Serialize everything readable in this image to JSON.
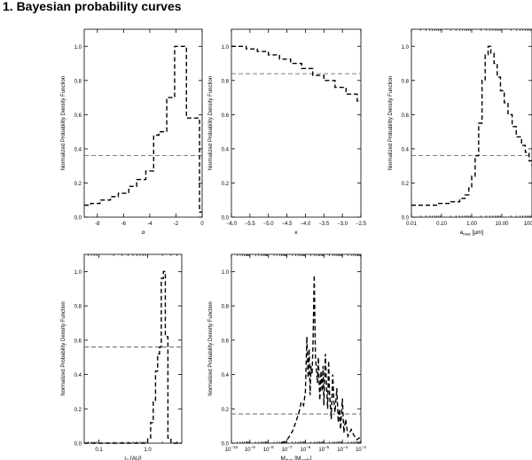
{
  "page": {
    "heading": "1. Bayesian probability curves"
  },
  "chart_data": [
    {
      "type": "line",
      "ylabel": "Normalized Probability Density Function",
      "xlabel": "α",
      "xscale": "linear",
      "xlim": [
        -9,
        0
      ],
      "ylim": [
        0,
        1.1
      ],
      "xticks": [
        -8,
        -6,
        -4,
        -2,
        0
      ],
      "xtick_labels": [
        "-8",
        "-6",
        "-4",
        "-2",
        "0"
      ],
      "yticks": [
        0,
        0.2,
        0.4,
        0.6,
        0.8,
        1.0
      ],
      "ytick_labels": [
        "0.0",
        "0.2",
        "0.4",
        "0.6",
        "0.8",
        "1.0"
      ],
      "reference_level": 0.36,
      "series": [
        {
          "style": "step-dashed",
          "x": [
            -9,
            -8.5,
            -7.8,
            -7.0,
            -6.4,
            -5.6,
            -5.0,
            -4.3,
            -3.7,
            -3.3,
            -2.7,
            -2.1,
            -1.6,
            -1.2,
            -0.5,
            -0.2,
            0
          ],
          "y": [
            0.07,
            0.08,
            0.1,
            0.12,
            0.14,
            0.18,
            0.22,
            0.27,
            0.48,
            0.5,
            0.7,
            1.0,
            1.0,
            0.58,
            0.58,
            0.03,
            0.03
          ]
        }
      ]
    },
    {
      "type": "line",
      "ylabel": "Normalized Probability Density Function",
      "xlabel": "κ",
      "xscale": "linear",
      "xlim": [
        -6.0,
        -2.5
      ],
      "ylim": [
        0,
        1.1
      ],
      "xticks": [
        -6.0,
        -5.5,
        -5.0,
        -4.5,
        -4.0,
        -3.5,
        -3.0,
        -2.5
      ],
      "xtick_labels": [
        "−6.0",
        "−5.5",
        "−5.0",
        "−4.5",
        "−4.0",
        "−3.5",
        "−3.0",
        "−2.5"
      ],
      "yticks": [
        0,
        0.2,
        0.4,
        0.6,
        0.8,
        1.0
      ],
      "ytick_labels": [
        "0.0",
        "0.2",
        "0.4",
        "0.6",
        "0.8",
        "1.0"
      ],
      "reference_level": 0.84,
      "series": [
        {
          "style": "step-dashed",
          "x": [
            -6.0,
            -5.6,
            -5.3,
            -5.0,
            -4.7,
            -4.4,
            -4.1,
            -3.8,
            -3.5,
            -3.2,
            -2.9,
            -2.6,
            -2.5
          ],
          "y": [
            1.0,
            0.985,
            0.97,
            0.95,
            0.925,
            0.9,
            0.87,
            0.83,
            0.8,
            0.76,
            0.72,
            0.68,
            0.68
          ]
        }
      ]
    },
    {
      "type": "line",
      "ylabel": "Normalized Probability Density Function",
      "xlabel": "a",
      "xlabel_sub": "max",
      "xlabel_unit": " [μm]",
      "xscale": "log",
      "xlim": [
        0.01,
        100
      ],
      "ylim": [
        0,
        1.1
      ],
      "xticks": [
        0.01,
        0.1,
        1,
        10,
        100
      ],
      "xtick_labels": [
        "0.01",
        "0.10",
        "1.00",
        "10.00",
        "100.00"
      ],
      "yticks": [
        0,
        0.2,
        0.4,
        0.6,
        0.8,
        1.0
      ],
      "ytick_labels": [
        "0.0",
        "0.2",
        "0.4",
        "0.6",
        "0.8",
        "1.0"
      ],
      "reference_level": 0.36,
      "series": [
        {
          "style": "step-dashed",
          "x": [
            0.01,
            0.03,
            0.08,
            0.2,
            0.4,
            0.6,
            0.8,
            1.0,
            1.3,
            1.7,
            2.2,
            2.8,
            3.5,
            4.3,
            5.5,
            7,
            9,
            12,
            16,
            22,
            30,
            45,
            60,
            80,
            100
          ],
          "y": [
            0.07,
            0.07,
            0.08,
            0.09,
            0.11,
            0.13,
            0.17,
            0.24,
            0.36,
            0.55,
            0.8,
            0.95,
            1.0,
            0.96,
            0.9,
            0.82,
            0.74,
            0.67,
            0.6,
            0.53,
            0.47,
            0.42,
            0.38,
            0.33,
            0.3
          ]
        }
      ]
    },
    {
      "type": "line",
      "ylabel": "Normalized Probability Density Function",
      "xlabel": "r",
      "xlabel_sub": "0",
      "xlabel_unit": " [AU]",
      "xscale": "log",
      "xlim": [
        0.05,
        5
      ],
      "ylim": [
        0,
        1.1
      ],
      "xticks": [
        0.1,
        1.0
      ],
      "xtick_labels": [
        "0.1",
        "1.0"
      ],
      "yticks": [
        0,
        0.2,
        0.4,
        0.6,
        0.8,
        1.0
      ],
      "ytick_labels": [
        "0.0",
        "0.2",
        "0.4",
        "0.6",
        "0.8",
        "1.0"
      ],
      "reference_level": 0.56,
      "series": [
        {
          "style": "step-dashed",
          "x": [
            0.05,
            0.3,
            0.8,
            1.0,
            1.15,
            1.3,
            1.45,
            1.6,
            1.75,
            1.9,
            2.1,
            2.3,
            2.6,
            3.0,
            5
          ],
          "y": [
            0,
            0,
            0,
            0.03,
            0.12,
            0.25,
            0.42,
            0.52,
            0.56,
            0.96,
            1.0,
            0.62,
            0.03,
            0,
            0
          ]
        }
      ]
    },
    {
      "type": "line",
      "ylabel": "Normalized Probability Density Function",
      "xlabel": "M",
      "xlabel_sub": "dust",
      "xlabel_unit": " [M",
      "xlabel_unit_sub": "earth",
      "xlabel_unit_end": "]",
      "xscale": "log",
      "xlim": [
        1e-10,
        0.001
      ],
      "ylim": [
        0,
        1.1
      ],
      "xticks": [
        1e-10,
        1e-09,
        1e-08,
        1e-07,
        1e-06,
        1e-05,
        0.0001,
        0.001
      ],
      "xtick_labels": [
        "10",
        "10",
        "10",
        "10",
        "10",
        "10",
        "10",
        "10"
      ],
      "xtick_exponents": [
        "−10",
        "−9",
        "−8",
        "−7",
        "−6",
        "−5",
        "−4",
        "−3"
      ],
      "yticks": [
        0,
        0.2,
        0.4,
        0.6,
        0.8,
        1.0
      ],
      "ytick_labels": [
        "0.0",
        "0.2",
        "0.4",
        "0.6",
        "0.8",
        "1.0"
      ],
      "reference_level": 0.17,
      "series": [
        {
          "style": "line-dashed",
          "x": [
            5e-08,
            8e-08,
            1.2e-07,
            2e-07,
            3e-07,
            4.5e-07,
            6e-07,
            8e-07,
            1e-06,
            1.2e-06,
            1.4e-06,
            1.6e-06,
            1.8e-06,
            2e-06,
            2.3e-06,
            2.6e-06,
            3e-06,
            3.5e-06,
            4e-06,
            4.5e-06,
            5e-06,
            6e-06,
            7e-06,
            8e-06,
            9e-06,
            1e-05,
            1.2e-05,
            1.4e-05,
            1.6e-05,
            1.8e-05,
            2e-05,
            2.5e-05,
            3e-05,
            3.5e-05,
            4e-05,
            5e-05,
            6e-05,
            7e-05,
            8e-05,
            0.0001,
            0.00012,
            0.00015,
            0.0002,
            0.0003,
            0.0004,
            0.0006,
            0.0008,
            0.001
          ],
          "y": [
            0,
            0.01,
            0.03,
            0.07,
            0.12,
            0.18,
            0.24,
            0.22,
            0.3,
            0.62,
            0.38,
            0.55,
            0.28,
            0.45,
            0.4,
            0.6,
            0.98,
            0.5,
            0.42,
            0.35,
            0.5,
            0.25,
            0.42,
            0.3,
            0.45,
            0.22,
            0.52,
            0.32,
            0.2,
            0.48,
            0.3,
            0.14,
            0.4,
            0.24,
            0.18,
            0.32,
            0.12,
            0.2,
            0.08,
            0.26,
            0.06,
            0.14,
            0.04,
            0.08,
            0.05,
            0.02,
            0.03,
            0.03
          ]
        }
      ]
    }
  ]
}
